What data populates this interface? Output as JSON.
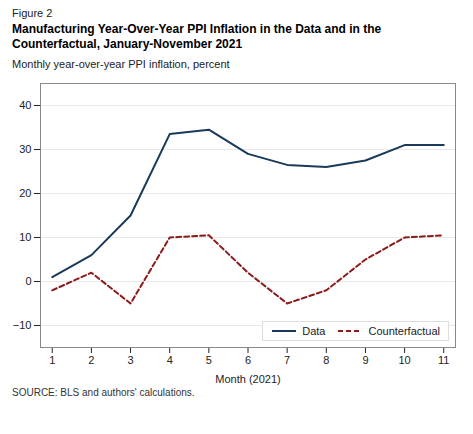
{
  "chart_data": {
    "type": "line",
    "figure_label": "Figure 2",
    "title": "Manufacturing Year-Over-Year PPI Inflation in the Data and in the Counterfactual, January-November 2021",
    "ylabel": "Monthly year-over-year PPI inflation, percent",
    "xlabel": "Month (2021)",
    "source": "SOURCE: BLS and authors' calculations.",
    "x": [
      1,
      2,
      3,
      4,
      5,
      6,
      7,
      8,
      9,
      10,
      11
    ],
    "series": [
      {
        "name": "Data",
        "color": "#1a3a5c",
        "line_style": "solid",
        "values": [
          1,
          6,
          15,
          33.5,
          34.5,
          29,
          26.5,
          26,
          27.5,
          31,
          31
        ]
      },
      {
        "name": "Counterfactual",
        "color": "#8b1a1a",
        "line_style": "dashed",
        "values": [
          -2,
          2,
          -5,
          10,
          10.5,
          2,
          -5,
          -2,
          5,
          10,
          10.5
        ]
      }
    ],
    "xlim": [
      0.7,
      11.3
    ],
    "xticks": [
      1,
      2,
      3,
      4,
      5,
      6,
      7,
      8,
      9,
      10,
      11
    ],
    "ylim": [
      -15,
      45
    ],
    "yticks": [
      {
        "value": -10,
        "label": "−10"
      },
      0,
      10,
      20,
      30,
      40
    ],
    "grid": true,
    "legend": "lower right"
  }
}
